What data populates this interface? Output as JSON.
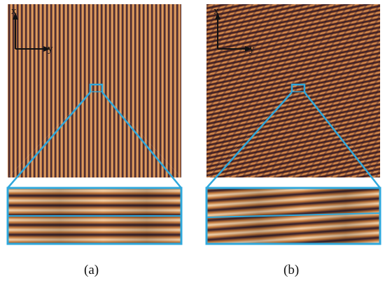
{
  "panels": [
    {
      "id": "a",
      "caption": "(a)",
      "axis_x_label": "x",
      "axis_y_label": "y"
    },
    {
      "id": "b",
      "caption": "(b)",
      "axis_x_label": "x",
      "axis_y_label": "y"
    }
  ],
  "colors": {
    "pattern_light": "#e9a870",
    "pattern_mid": "#b0642e",
    "pattern_dark": "#2c1a2c",
    "zoom_outline": "#2fa8dc",
    "axis": "#111111"
  }
}
